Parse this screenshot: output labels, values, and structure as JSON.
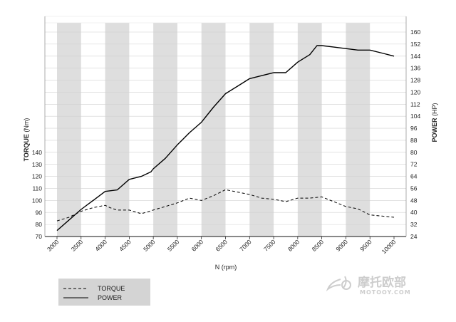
{
  "chart_data": {
    "type": "line",
    "x_label": "N (rpm)",
    "y_left_label": "TORQUE",
    "y_left_unit": "(Nm)",
    "y_right_label": "POWER",
    "y_right_unit": "(HP)",
    "x_ticks": [
      "3000",
      "3500",
      "4000",
      "4500",
      "5000",
      "5500",
      "6000",
      "6500",
      "7000",
      "7500",
      "8000",
      "8500",
      "9000",
      "9500",
      "10000"
    ],
    "y_left_ticks": [
      "70",
      "80",
      "90",
      "100",
      "110",
      "120",
      "130",
      "140"
    ],
    "y_right_ticks": [
      "24",
      "32",
      "40",
      "48",
      "56",
      "64",
      "72",
      "80",
      "88",
      "96",
      "104",
      "112",
      "120",
      "128",
      "136",
      "144",
      "152",
      "160"
    ],
    "xlim": [
      3000,
      10000
    ],
    "y_left_lim": [
      70,
      140
    ],
    "y_right_lim": [
      24,
      160
    ],
    "grid": true,
    "series": [
      {
        "name": "TORQUE",
        "axis": "left",
        "style": "dashed",
        "x": [
          3000,
          3250,
          3500,
          3750,
          4000,
          4100,
          4250,
          4500,
          4750,
          5000,
          5250,
          5500,
          5750,
          6000,
          6250,
          6500,
          6750,
          7000,
          7250,
          7500,
          7750,
          8000,
          8250,
          8500,
          8750,
          9000,
          9250,
          9500,
          9750,
          10000
        ],
        "y": [
          83,
          86,
          91,
          94,
          96,
          94,
          92,
          92,
          89,
          92,
          95,
          98,
          102,
          100,
          104,
          109,
          107,
          105,
          102,
          101,
          99,
          102,
          102,
          103,
          99,
          95,
          93,
          88,
          87,
          86
        ]
      },
      {
        "name": "POWER",
        "axis": "right",
        "style": "solid",
        "x": [
          3000,
          3250,
          3500,
          3750,
          4000,
          4250,
          4500,
          4750,
          4950,
          5000,
          5250,
          5500,
          5750,
          6000,
          6250,
          6500,
          6750,
          7000,
          7250,
          7500,
          7750,
          8000,
          8250,
          8400,
          8500,
          8750,
          9000,
          9250,
          9500,
          9750,
          10000
        ],
        "y": [
          28,
          35,
          42,
          48,
          54,
          55,
          62,
          64,
          67,
          69,
          76,
          85,
          93,
          100,
          110,
          119,
          124,
          129,
          131,
          133,
          133,
          140,
          145,
          151,
          151,
          150,
          149,
          148,
          148,
          146,
          144
        ]
      }
    ]
  },
  "legend": [
    {
      "label": "TORQUE",
      "style": "dashed"
    },
    {
      "label": "POWER",
      "style": "solid"
    }
  ],
  "watermark": {
    "text_cn": "摩托欧部",
    "text_en": "MOTOOY.COM"
  }
}
